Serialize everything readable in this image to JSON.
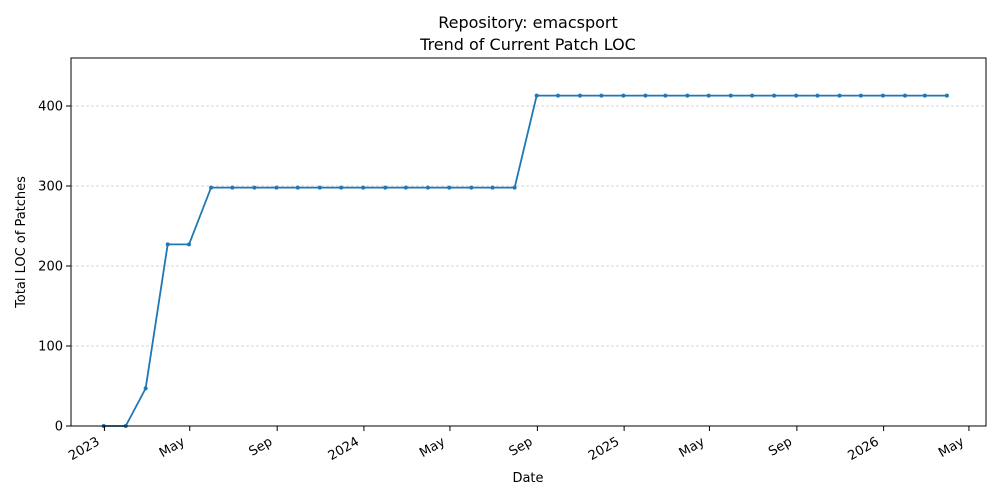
{
  "chart_data": {
    "type": "line",
    "title_line1": "Repository: emacsport",
    "title_line2": "Trend of Current Patch LOC",
    "xlabel": "Date",
    "ylabel": "Total LOC of Patches",
    "ylim": [
      0,
      460
    ],
    "yticks": [
      0,
      100,
      200,
      300,
      400
    ],
    "ytick_labels": [
      "0",
      "100",
      "200",
      "300",
      "400"
    ],
    "xlim": [
      "2022-11-15",
      "2026-05-25"
    ],
    "xticks": [
      "2023-01-01",
      "2023-05-01",
      "2023-09-01",
      "2024-01-01",
      "2024-05-01",
      "2024-09-01",
      "2025-01-01",
      "2025-05-01",
      "2025-09-01",
      "2026-01-01",
      "2026-05-01"
    ],
    "xtick_labels": [
      "2023",
      "May",
      "Sep",
      "2024",
      "May",
      "Sep",
      "2025",
      "May",
      "Sep",
      "2026",
      "May"
    ],
    "grid": "y-dashed",
    "color": "#1f77b4",
    "series": [
      {
        "x": [
          "2022-12-31",
          "2023-01-31",
          "2023-02-28",
          "2023-03-31",
          "2023-04-30",
          "2023-05-31",
          "2023-06-30",
          "2023-07-31",
          "2023-08-31",
          "2023-09-30",
          "2023-10-31",
          "2023-11-30",
          "2023-12-31",
          "2024-01-31",
          "2024-02-29",
          "2024-03-31",
          "2024-04-30",
          "2024-05-31",
          "2024-06-30",
          "2024-07-31",
          "2024-08-31",
          "2024-09-30",
          "2024-10-31",
          "2024-11-30",
          "2024-12-31",
          "2025-01-31",
          "2025-02-28",
          "2025-03-31",
          "2025-04-30",
          "2025-05-31",
          "2025-06-30",
          "2025-07-31",
          "2025-08-31",
          "2025-09-30",
          "2025-10-31",
          "2025-11-30",
          "2025-12-31",
          "2026-01-31",
          "2026-02-28",
          "2026-03-31"
        ],
        "values": [
          0,
          0,
          47,
          227,
          227,
          298,
          298,
          298,
          298,
          298,
          298,
          298,
          298,
          298,
          298,
          298,
          298,
          298,
          298,
          298,
          413,
          413,
          413,
          413,
          413,
          413,
          413,
          413,
          413,
          413,
          413,
          413,
          413,
          413,
          413,
          413,
          413,
          413,
          413,
          413
        ]
      }
    ]
  }
}
